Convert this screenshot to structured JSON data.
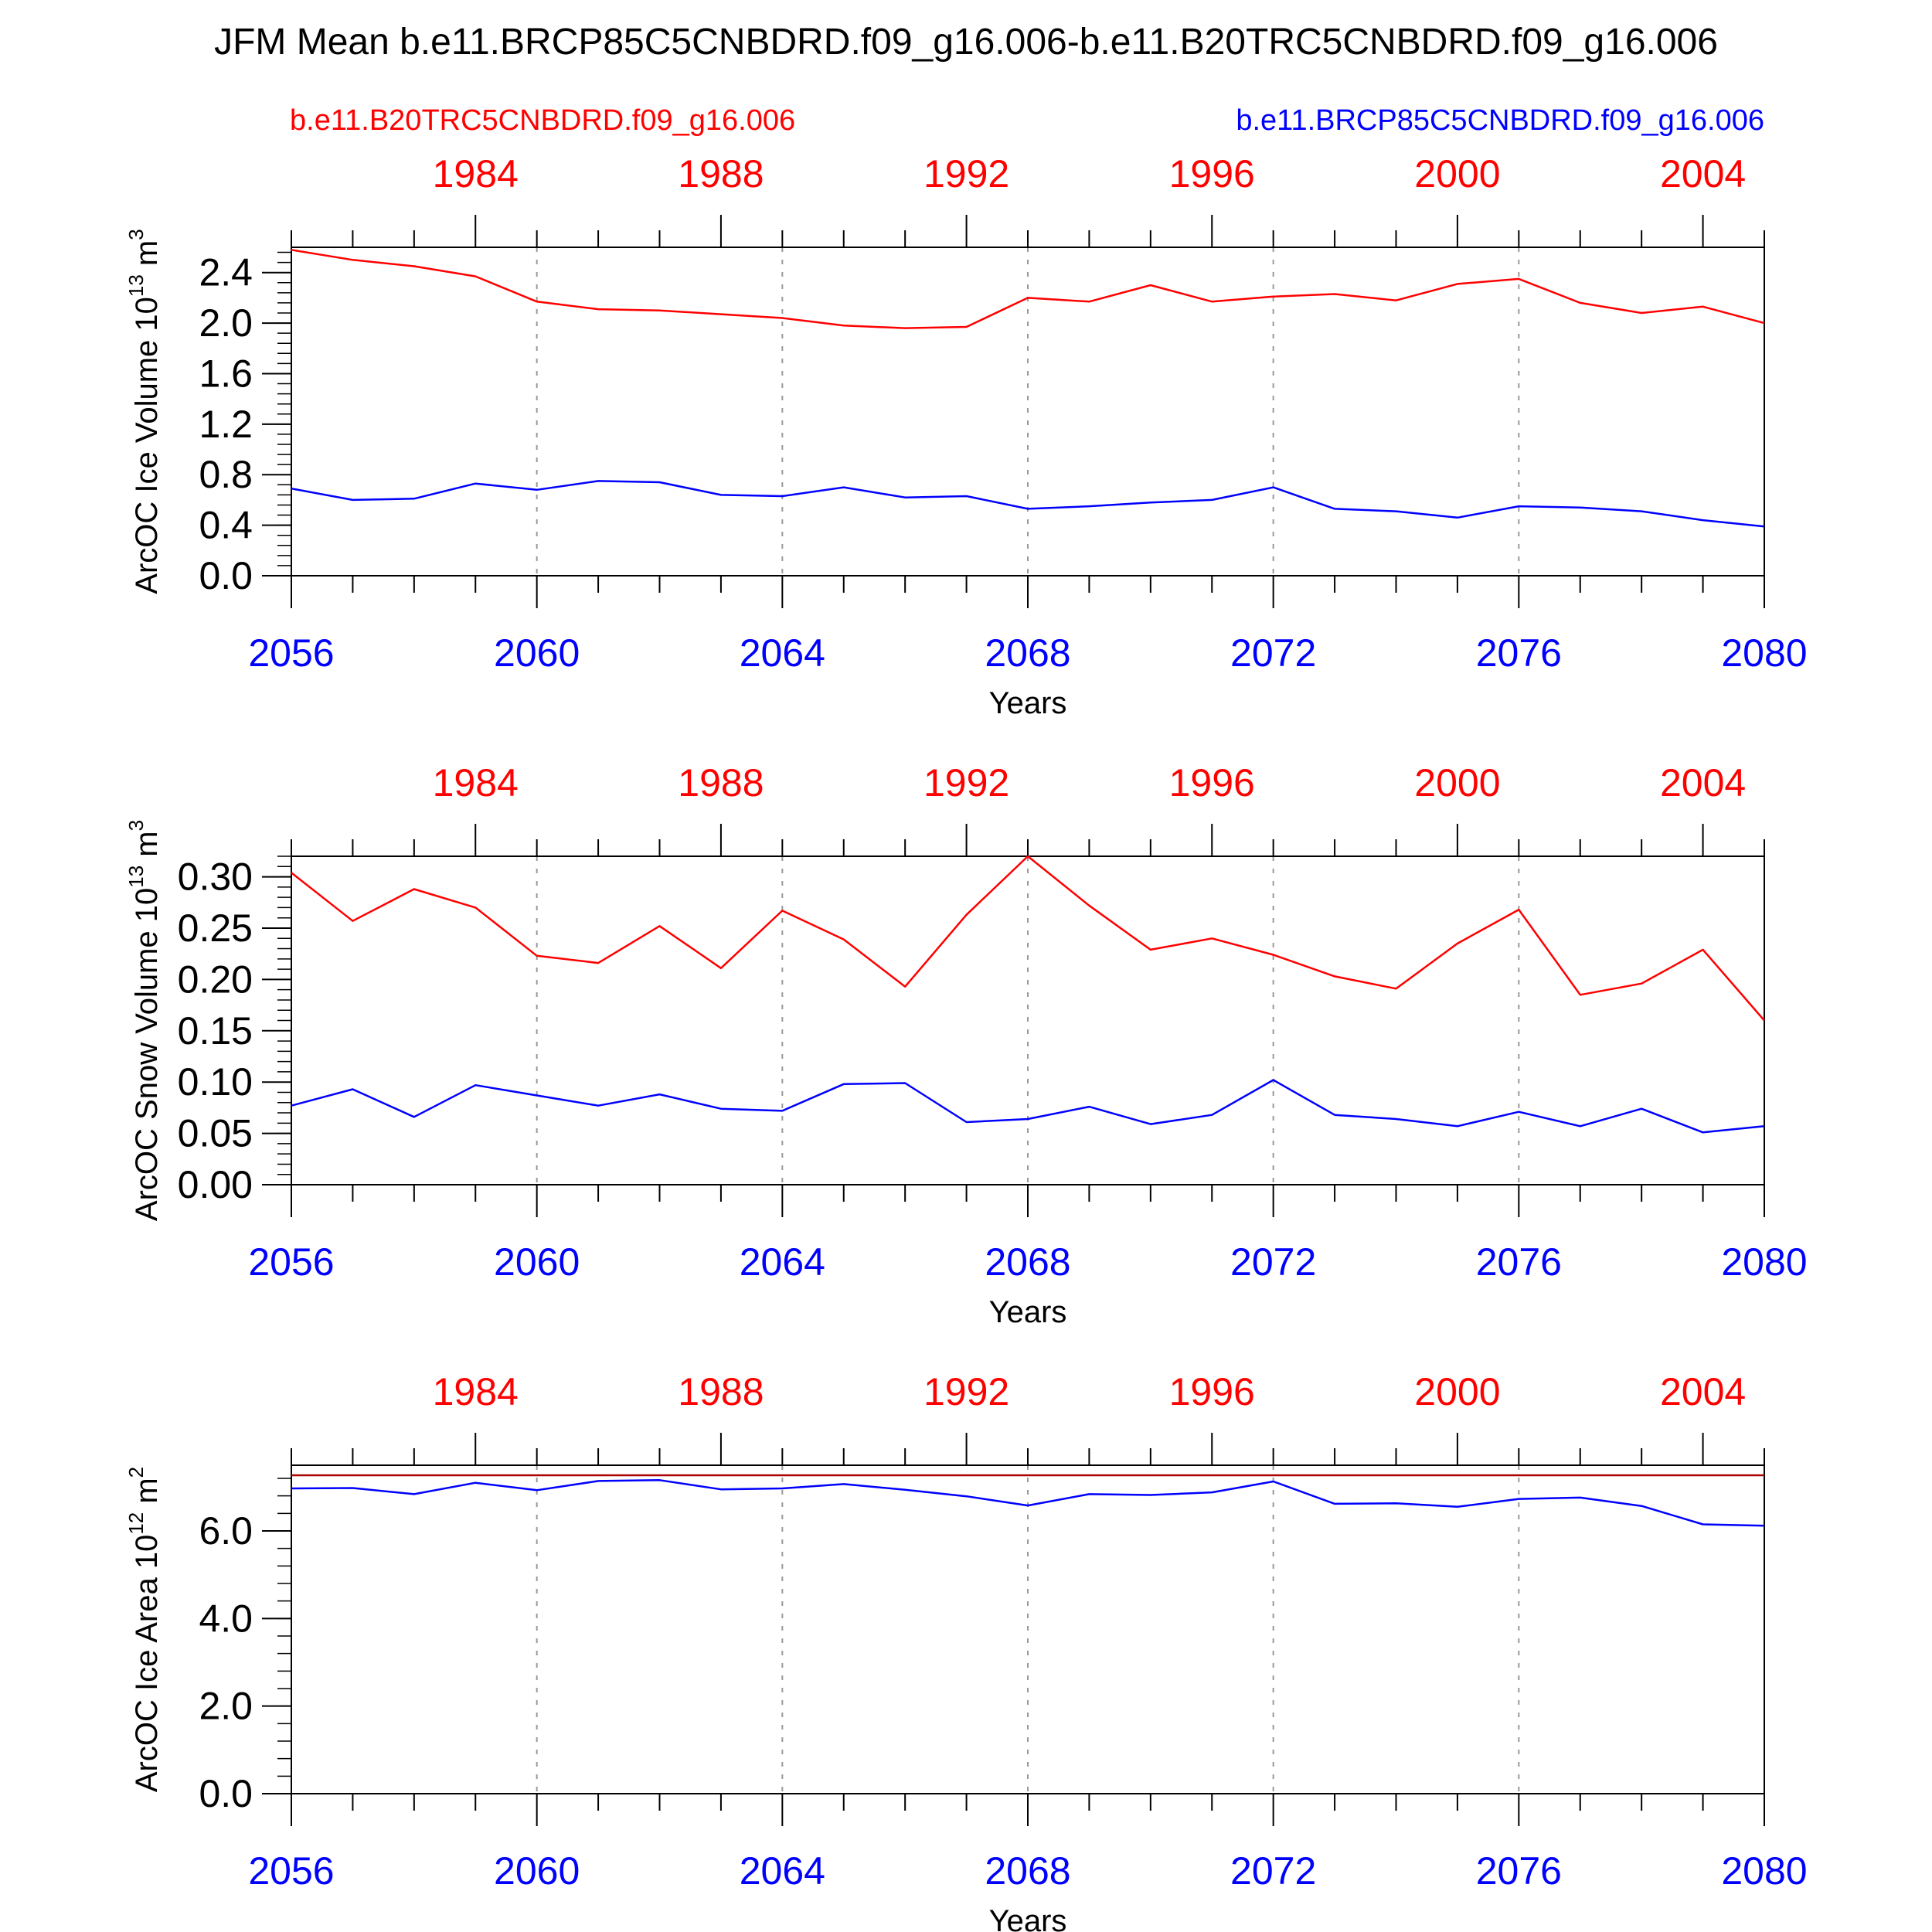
{
  "title": "JFM Mean b.e11.BRCP85C5CNBDRD.f09_g16.006-b.e11.B20TRC5CNBDRD.f09_g16.006",
  "legend": {
    "left_label": "b.e11.B20TRC5CNBDRD.f09_g16.006",
    "left_color": "#ff0000",
    "right_label": "b.e11.BRCP85C5CNBDRD.f09_g16.006",
    "right_color": "#0000ff"
  },
  "colors": {
    "red_series": "#ff0000",
    "blue_series": "#0000ff",
    "axis": "#000000",
    "grid": "#999999",
    "hist_line_panel3": "#aa0000"
  },
  "chart_data": [
    {
      "type": "line",
      "id": "ice-volume",
      "ylabel": "ArcOC Ice Volume 10^13 m^3",
      "ylabel_main": "ArcOC Ice Volume 10",
      "ylabel_exp": "13",
      "ylabel_unit": " m",
      "ylabel_unit_exp": "3",
      "xlabel": "Years",
      "ylim": [
        0,
        2.6
      ],
      "yticks": [
        "0.0",
        "0.4",
        "0.8",
        "1.2",
        "1.6",
        "2.0",
        "2.4"
      ],
      "yticks_values": [
        0,
        0.4,
        0.8,
        1.2,
        1.6,
        2.0,
        2.4
      ],
      "y_minor_step": 0.08,
      "x_bottom_ticks": [
        "2056",
        "2060",
        "2064",
        "2068",
        "2072",
        "2076",
        "2080"
      ],
      "x_top_ticks": [
        "1984",
        "1988",
        "1992",
        "1996",
        "2000",
        "2004"
      ],
      "x_bottom": [
        2056,
        2057,
        2058,
        2059,
        2060,
        2061,
        2062,
        2063,
        2064,
        2065,
        2066,
        2067,
        2068,
        2069,
        2070,
        2071,
        2072,
        2073,
        2074,
        2075,
        2076,
        2077,
        2078,
        2079,
        2080
      ],
      "grid": "vertical dashed at labeled bottom ticks",
      "series": [
        {
          "axis": "top",
          "color": "#ff0000",
          "values": [
            2.58,
            2.5,
            2.45,
            2.37,
            2.17,
            2.11,
            2.1,
            2.07,
            2.04,
            1.98,
            1.96,
            1.97,
            2.2,
            2.17,
            2.3,
            2.17,
            2.21,
            2.23,
            2.18,
            2.31,
            2.35,
            2.16,
            2.08,
            2.13,
            2.0
          ]
        },
        {
          "axis": "bottom",
          "color": "#0000ff",
          "values": [
            0.69,
            0.6,
            0.61,
            0.73,
            0.68,
            0.75,
            0.74,
            0.64,
            0.63,
            0.7,
            0.62,
            0.63,
            0.53,
            0.55,
            0.58,
            0.6,
            0.7,
            0.53,
            0.51,
            0.46,
            0.55,
            0.54,
            0.51,
            0.44,
            0.39
          ]
        }
      ]
    },
    {
      "type": "line",
      "id": "snow-volume",
      "ylabel": "ArcOC Snow Volume 10^13 m^3",
      "ylabel_main": "ArcOC Snow Volume 10",
      "ylabel_exp": "13",
      "ylabel_unit": " m",
      "ylabel_unit_exp": "3",
      "xlabel": "Years",
      "ylim": [
        0,
        0.32
      ],
      "yticks": [
        "0.00",
        "0.05",
        "0.10",
        "0.15",
        "0.20",
        "0.25",
        "0.30"
      ],
      "yticks_values": [
        0,
        0.05,
        0.1,
        0.15,
        0.2,
        0.25,
        0.3
      ],
      "y_minor_step": 0.01,
      "x_bottom_ticks": [
        "2056",
        "2060",
        "2064",
        "2068",
        "2072",
        "2076",
        "2080"
      ],
      "x_top_ticks": [
        "1984",
        "1988",
        "1992",
        "1996",
        "2000",
        "2004"
      ],
      "x_bottom": [
        2056,
        2057,
        2058,
        2059,
        2060,
        2061,
        2062,
        2063,
        2064,
        2065,
        2066,
        2067,
        2068,
        2069,
        2070,
        2071,
        2072,
        2073,
        2074,
        2075,
        2076,
        2077,
        2078,
        2079,
        2080
      ],
      "grid": "vertical dashed at labeled bottom ticks",
      "series": [
        {
          "axis": "top",
          "color": "#ff0000",
          "values": [
            0.304,
            0.257,
            0.288,
            0.27,
            0.223,
            0.216,
            0.252,
            0.211,
            0.267,
            0.239,
            0.193,
            0.263,
            0.32,
            0.272,
            0.229,
            0.24,
            0.224,
            0.203,
            0.191,
            0.235,
            0.268,
            0.185,
            0.196,
            0.229,
            0.16
          ]
        },
        {
          "axis": "bottom",
          "color": "#0000ff",
          "values": [
            0.077,
            0.093,
            0.066,
            0.097,
            0.087,
            0.077,
            0.088,
            0.074,
            0.072,
            0.098,
            0.099,
            0.061,
            0.064,
            0.076,
            0.059,
            0.068,
            0.102,
            0.068,
            0.064,
            0.057,
            0.071,
            0.057,
            0.074,
            0.051,
            0.057
          ]
        }
      ]
    },
    {
      "type": "line",
      "id": "ice-area",
      "ylabel": "ArcOC Ice Area 10^12 m^2",
      "ylabel_main": "ArcOC Ice Area 10",
      "ylabel_exp": "12",
      "ylabel_unit": " m",
      "ylabel_unit_exp": "2",
      "xlabel": "Years",
      "ylim": [
        0,
        7.5
      ],
      "yticks": [
        "0.0",
        "2.0",
        "4.0",
        "6.0"
      ],
      "yticks_values": [
        0,
        2.0,
        4.0,
        6.0
      ],
      "y_minor_step": 0.4,
      "x_bottom_ticks": [
        "2056",
        "2060",
        "2064",
        "2068",
        "2072",
        "2076",
        "2080"
      ],
      "x_top_ticks": [
        "1984",
        "1988",
        "1992",
        "1996",
        "2000",
        "2004"
      ],
      "x_bottom": [
        2056,
        2057,
        2058,
        2059,
        2060,
        2061,
        2062,
        2063,
        2064,
        2065,
        2066,
        2067,
        2068,
        2069,
        2070,
        2071,
        2072,
        2073,
        2074,
        2075,
        2076,
        2077,
        2078,
        2079,
        2080
      ],
      "grid": "vertical dashed at labeled bottom ticks",
      "series": [
        {
          "axis": "top",
          "color": "#aa0000",
          "values": [
            7.27,
            7.27,
            7.27,
            7.27,
            7.27,
            7.27,
            7.27,
            7.27,
            7.27,
            7.27,
            7.27,
            7.27,
            7.27,
            7.27,
            7.27,
            7.27,
            7.27,
            7.27,
            7.27,
            7.27,
            7.27,
            7.27,
            7.27,
            7.27,
            7.27
          ]
        },
        {
          "axis": "bottom",
          "color": "#0000ff",
          "values": [
            6.97,
            6.98,
            6.84,
            7.1,
            6.93,
            7.14,
            7.16,
            6.95,
            6.97,
            7.07,
            6.94,
            6.79,
            6.58,
            6.84,
            6.82,
            6.88,
            7.13,
            6.62,
            6.63,
            6.55,
            6.73,
            6.76,
            6.57,
            6.15,
            6.12
          ]
        }
      ]
    }
  ]
}
